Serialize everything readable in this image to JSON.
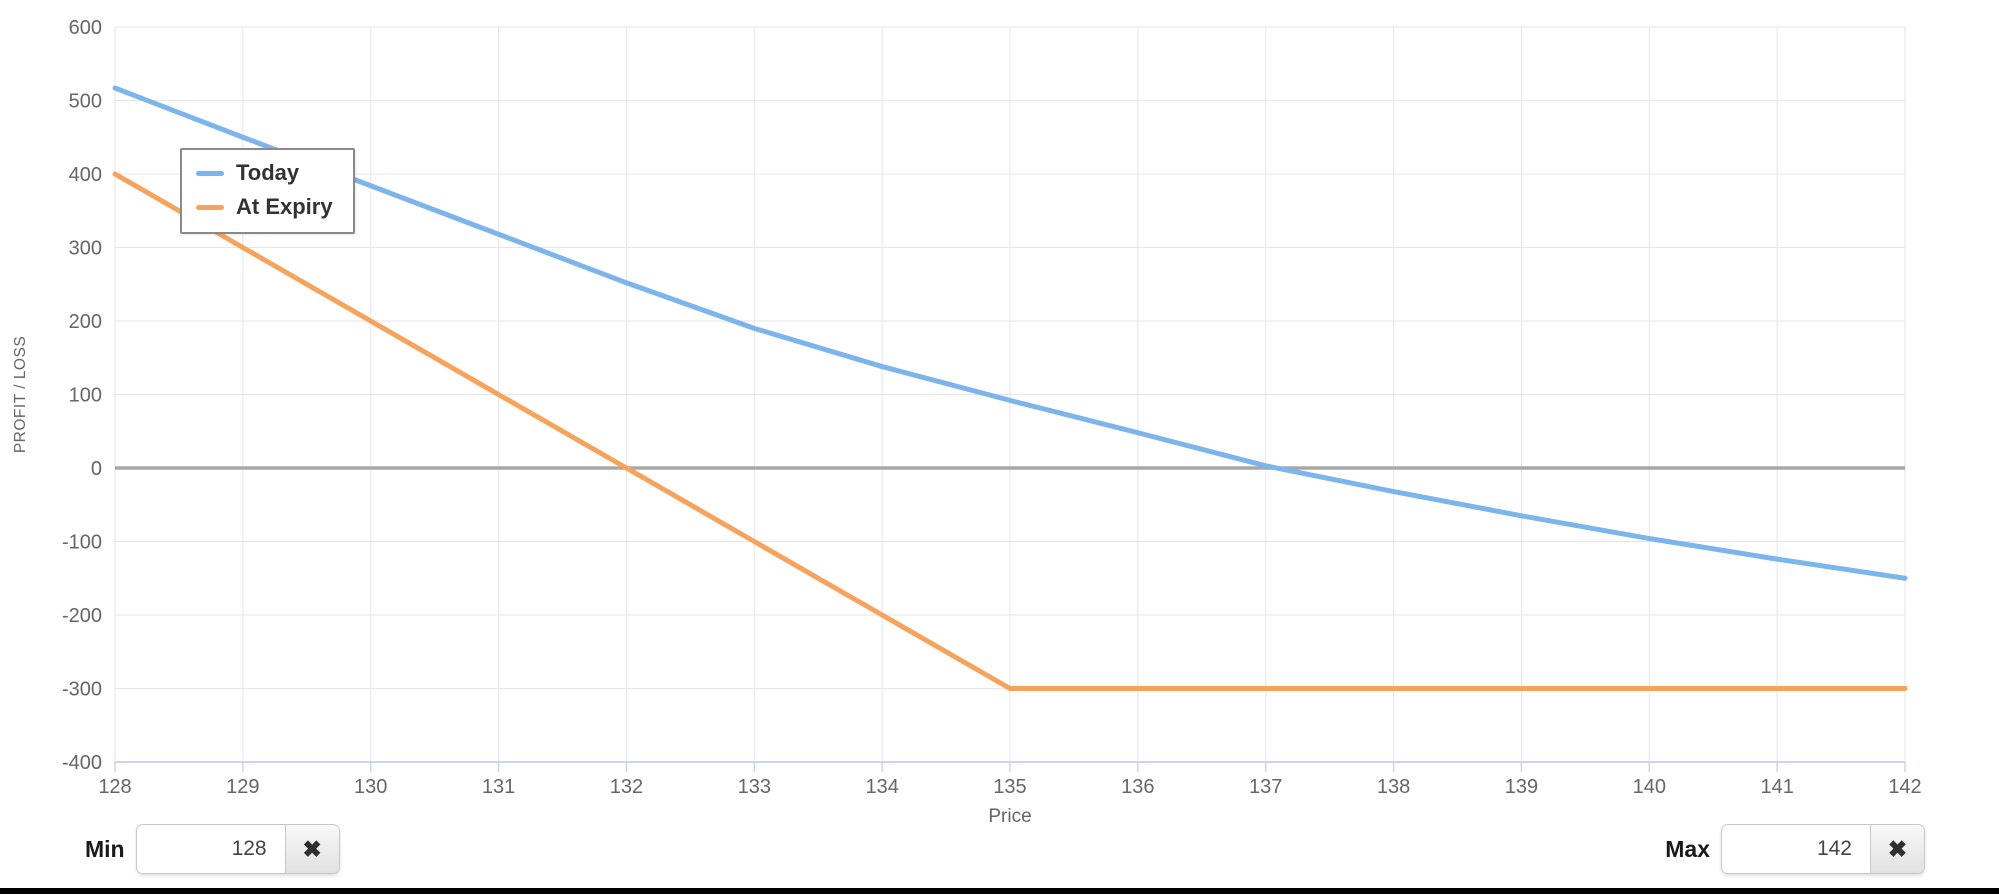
{
  "chart_data": {
    "type": "line",
    "title": "",
    "xlabel": "Price",
    "ylabel": "PROFIT / LOSS",
    "xlim": [
      128,
      142
    ],
    "ylim": [
      -400,
      600
    ],
    "x_ticks": [
      128,
      129,
      130,
      131,
      132,
      133,
      134,
      135,
      136,
      137,
      138,
      139,
      140,
      141,
      142
    ],
    "y_ticks": [
      600,
      500,
      400,
      300,
      200,
      100,
      0,
      -100,
      -200,
      -300,
      -400
    ],
    "grid": true,
    "zero_plot_line": 0,
    "legend_position": "top-left-inside",
    "x": [
      128,
      129,
      130,
      131,
      132,
      133,
      134,
      135,
      136,
      137,
      138,
      139,
      140,
      141,
      142
    ],
    "series": [
      {
        "name": "Today",
        "color": "#7cb5ec",
        "values": [
          517,
          450,
          384,
          318,
          252,
          190,
          138,
          92,
          48,
          3,
          -32,
          -65,
          -96,
          -124,
          -150
        ]
      },
      {
        "name": "At Expiry",
        "color": "#f7a35c",
        "values": [
          400,
          300,
          200,
          100,
          0,
          -100,
          -200,
          -300,
          -300,
          -300,
          -300,
          -300,
          -300,
          -300,
          -300
        ]
      }
    ]
  },
  "colors": {
    "grid": "#e6e6e6",
    "zero_line": "#a8a8a8",
    "axis_line": "#ccd6eb",
    "tick_label": "#666666",
    "axis_title": "#666666",
    "divider": "#000000"
  },
  "controls": {
    "min": {
      "label": "Min",
      "value": "128",
      "clear_icon": "✖"
    },
    "max": {
      "label": "Max",
      "value": "142",
      "clear_icon": "✖"
    }
  }
}
